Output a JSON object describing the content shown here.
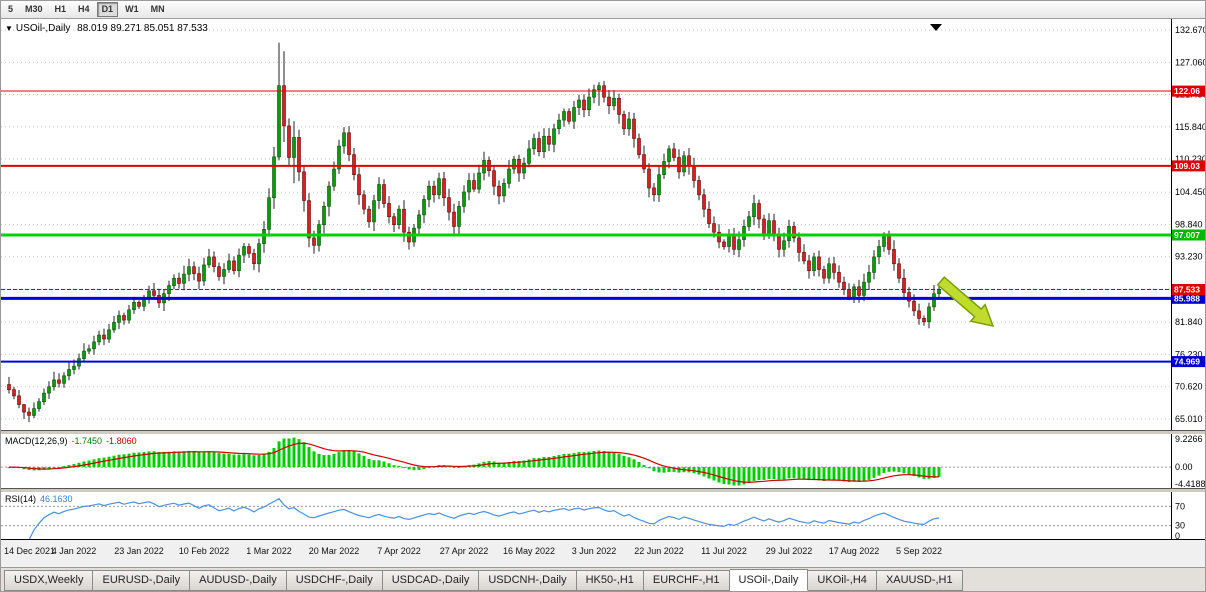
{
  "toolbar": {
    "periods": [
      "5",
      "M30",
      "H1",
      "H4",
      "D1",
      "W1",
      "MN"
    ],
    "active": "D1"
  },
  "symbol_header": {
    "icon": "▼",
    "name": "USOil-,Daily",
    "ohlc": "88.019 89.271 85.051 87.533"
  },
  "chart_data": {
    "type": "candlestick",
    "symbol": "USOil-",
    "timeframe": "Daily",
    "value_range": [
      62.9,
      134.6
    ],
    "y_axis_ticks": [
      "132.670",
      "127.060",
      "121.450",
      "115.840",
      "110.230",
      "104.450",
      "98.840",
      "93.230",
      "87.620",
      "81.840",
      "76.230",
      "70.620",
      "65.010"
    ],
    "x_axis_labels": [
      "14 Dec 2021",
      "4 Jan 2022",
      "23 Jan 2022",
      "10 Feb 2022",
      "1 Mar 2022",
      "20 Mar 2022",
      "7 Apr 2022",
      "27 Apr 2022",
      "16 May 2022",
      "3 Jun 2022",
      "22 Jun 2022",
      "11 Jul 2022",
      "29 Jul 2022",
      "17 Aug 2022",
      "5 Sep 2022"
    ],
    "closes": [
      70.1,
      69.0,
      67.5,
      66.2,
      65.6,
      66.8,
      68.0,
      69.5,
      70.6,
      71.8,
      71.2,
      72.5,
      73.6,
      74.2,
      75.5,
      76.8,
      77.2,
      78.4,
      79.6,
      78.9,
      80.5,
      81.8,
      83.0,
      82.2,
      84.0,
      85.3,
      84.6,
      86.0,
      87.3,
      86.5,
      85.2,
      86.8,
      88.2,
      89.5,
      88.6,
      90.2,
      91.5,
      90.3,
      89.0,
      91.8,
      93.2,
      91.5,
      89.8,
      91.0,
      92.5,
      90.8,
      93.5,
      95.0,
      93.8,
      92.0,
      95.5,
      98.0,
      103.5,
      110.6,
      123.0,
      116.0,
      110.5,
      114.0,
      108.0,
      103.0,
      96.5,
      95.2,
      98.8,
      102.0,
      105.5,
      108.5,
      112.5,
      114.8,
      111.0,
      107.5,
      104.0,
      101.5,
      99.3,
      103.0,
      105.8,
      102.5,
      100.2,
      98.8,
      101.5,
      97.5,
      95.8,
      98.2,
      100.5,
      103.2,
      105.5,
      104.0,
      106.8,
      103.5,
      101.0,
      98.5,
      102.0,
      104.5,
      106.5,
      105.0,
      107.8,
      110.0,
      108.2,
      105.5,
      103.8,
      106.0,
      108.5,
      110.2,
      107.8,
      109.5,
      112.0,
      113.8,
      111.5,
      114.2,
      112.8,
      115.5,
      117.0,
      118.5,
      116.8,
      119.2,
      120.5,
      118.8,
      121.0,
      122.3,
      123.0,
      121.0,
      119.5,
      120.8,
      118.0,
      115.5,
      117.2,
      113.8,
      111.0,
      108.5,
      105.2,
      104.0,
      107.5,
      109.8,
      112.0,
      110.5,
      108.0,
      110.8,
      109.0,
      106.5,
      104.0,
      101.5,
      99.0,
      97.5,
      95.8,
      95.0,
      96.8,
      94.5,
      96.2,
      98.5,
      100.2,
      102.5,
      99.8,
      97.2,
      99.5,
      96.8,
      94.5,
      96.0,
      98.5,
      96.5,
      94.0,
      92.5,
      90.8,
      93.2,
      91.0,
      89.5,
      92.0,
      90.5,
      88.8,
      87.5,
      86.2,
      88.0,
      86.5,
      88.8,
      90.5,
      93.2,
      95.0,
      96.8,
      94.5,
      92.0,
      89.5,
      87.0,
      85.5,
      83.8,
      82.5,
      81.9,
      84.5,
      86.8,
      87.533
    ],
    "wick_overrides": {
      "3": [
        67.6,
        65.0
      ],
      "54": [
        130.5,
        110.0
      ],
      "55": [
        129.0,
        113.2
      ],
      "57": [
        116.8,
        106.0
      ],
      "118": [
        123.6,
        119.5
      ],
      "183": [
        83.0,
        81.2
      ]
    },
    "levels": [
      {
        "value": 122.06,
        "label": "122.06",
        "color": "#e00000",
        "badge": "#dd0000",
        "width": 1
      },
      {
        "value": 109.03,
        "label": "109.03",
        "color": "#e00000",
        "badge": "#dd0000",
        "width": 2
      },
      {
        "value": 97.007,
        "label": "97.007",
        "color": "#00d200",
        "badge": "#00b800",
        "width": 3
      },
      {
        "value": 85.988,
        "label": "85.988",
        "color": "#0000dd",
        "badge": "#0000cc",
        "width": 3
      },
      {
        "value": 74.969,
        "label": "74.969",
        "color": "#0000dd",
        "badge": "#0000cc",
        "width": 2
      }
    ],
    "bid": {
      "value": 87.533,
      "label": "87.533",
      "badge": "#dd0000",
      "line_color": "#aa0000"
    },
    "colors": {
      "up": "#089d08",
      "up_border": "#045004",
      "down": "#d42222",
      "down_border": "#6b0000",
      "wick": "#222222"
    },
    "macd": {
      "name": "MACD(12,26,9)",
      "main_value": "-1.7450",
      "signal_value": "-1.8060",
      "axis_ticks": [
        "9.2266",
        "0.00",
        "-4.4188"
      ],
      "hist_color": "#00cc00",
      "signal_color": "#cc0000"
    },
    "rsi": {
      "name": "RSI(14)",
      "value": "46.1630",
      "axis_ticks": [
        "70",
        "30",
        "0"
      ],
      "levels": [
        70,
        30
      ],
      "line_color": "#4a90e2"
    },
    "arrow": {
      "fill": "#bfdb2e",
      "stroke": "#7d9c0a"
    },
    "marker": {
      "symbol": "▼"
    }
  },
  "tabs": {
    "items": [
      "USDX,Weekly",
      "EURUSD-,Daily",
      "AUDUSD-,Daily",
      "USDCHF-,Daily",
      "USDCAD-,Daily",
      "USDCNH-,Daily",
      "HK50-,H1",
      "EURCHF-,H1",
      "USOil-,Daily",
      "UKOil-,H4",
      "XAUUSD-,H1"
    ],
    "active": "USOil-,Daily"
  }
}
